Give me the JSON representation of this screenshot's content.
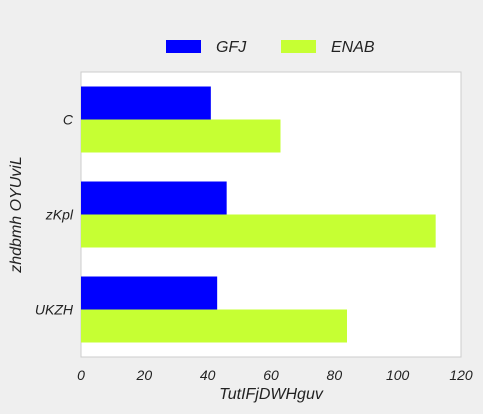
{
  "chart_data": {
    "type": "bar",
    "orientation": "horizontal",
    "categories": [
      "C",
      "zKpl",
      "UKZH"
    ],
    "series": [
      {
        "name": "GFJ",
        "values": [
          41,
          46,
          43
        ],
        "color": "#0000ff"
      },
      {
        "name": "ENAB",
        "values": [
          63,
          112,
          84
        ],
        "color": "#c6ff33"
      }
    ],
    "xlabel": "TutIFjDWHguv",
    "ylabel": "zhdbmh OYUviL",
    "xlim": [
      0,
      120
    ],
    "xticks": [
      "0",
      "20",
      "40",
      "60",
      "80",
      "100",
      "120"
    ],
    "grid": false,
    "legend_position": "top-center"
  }
}
